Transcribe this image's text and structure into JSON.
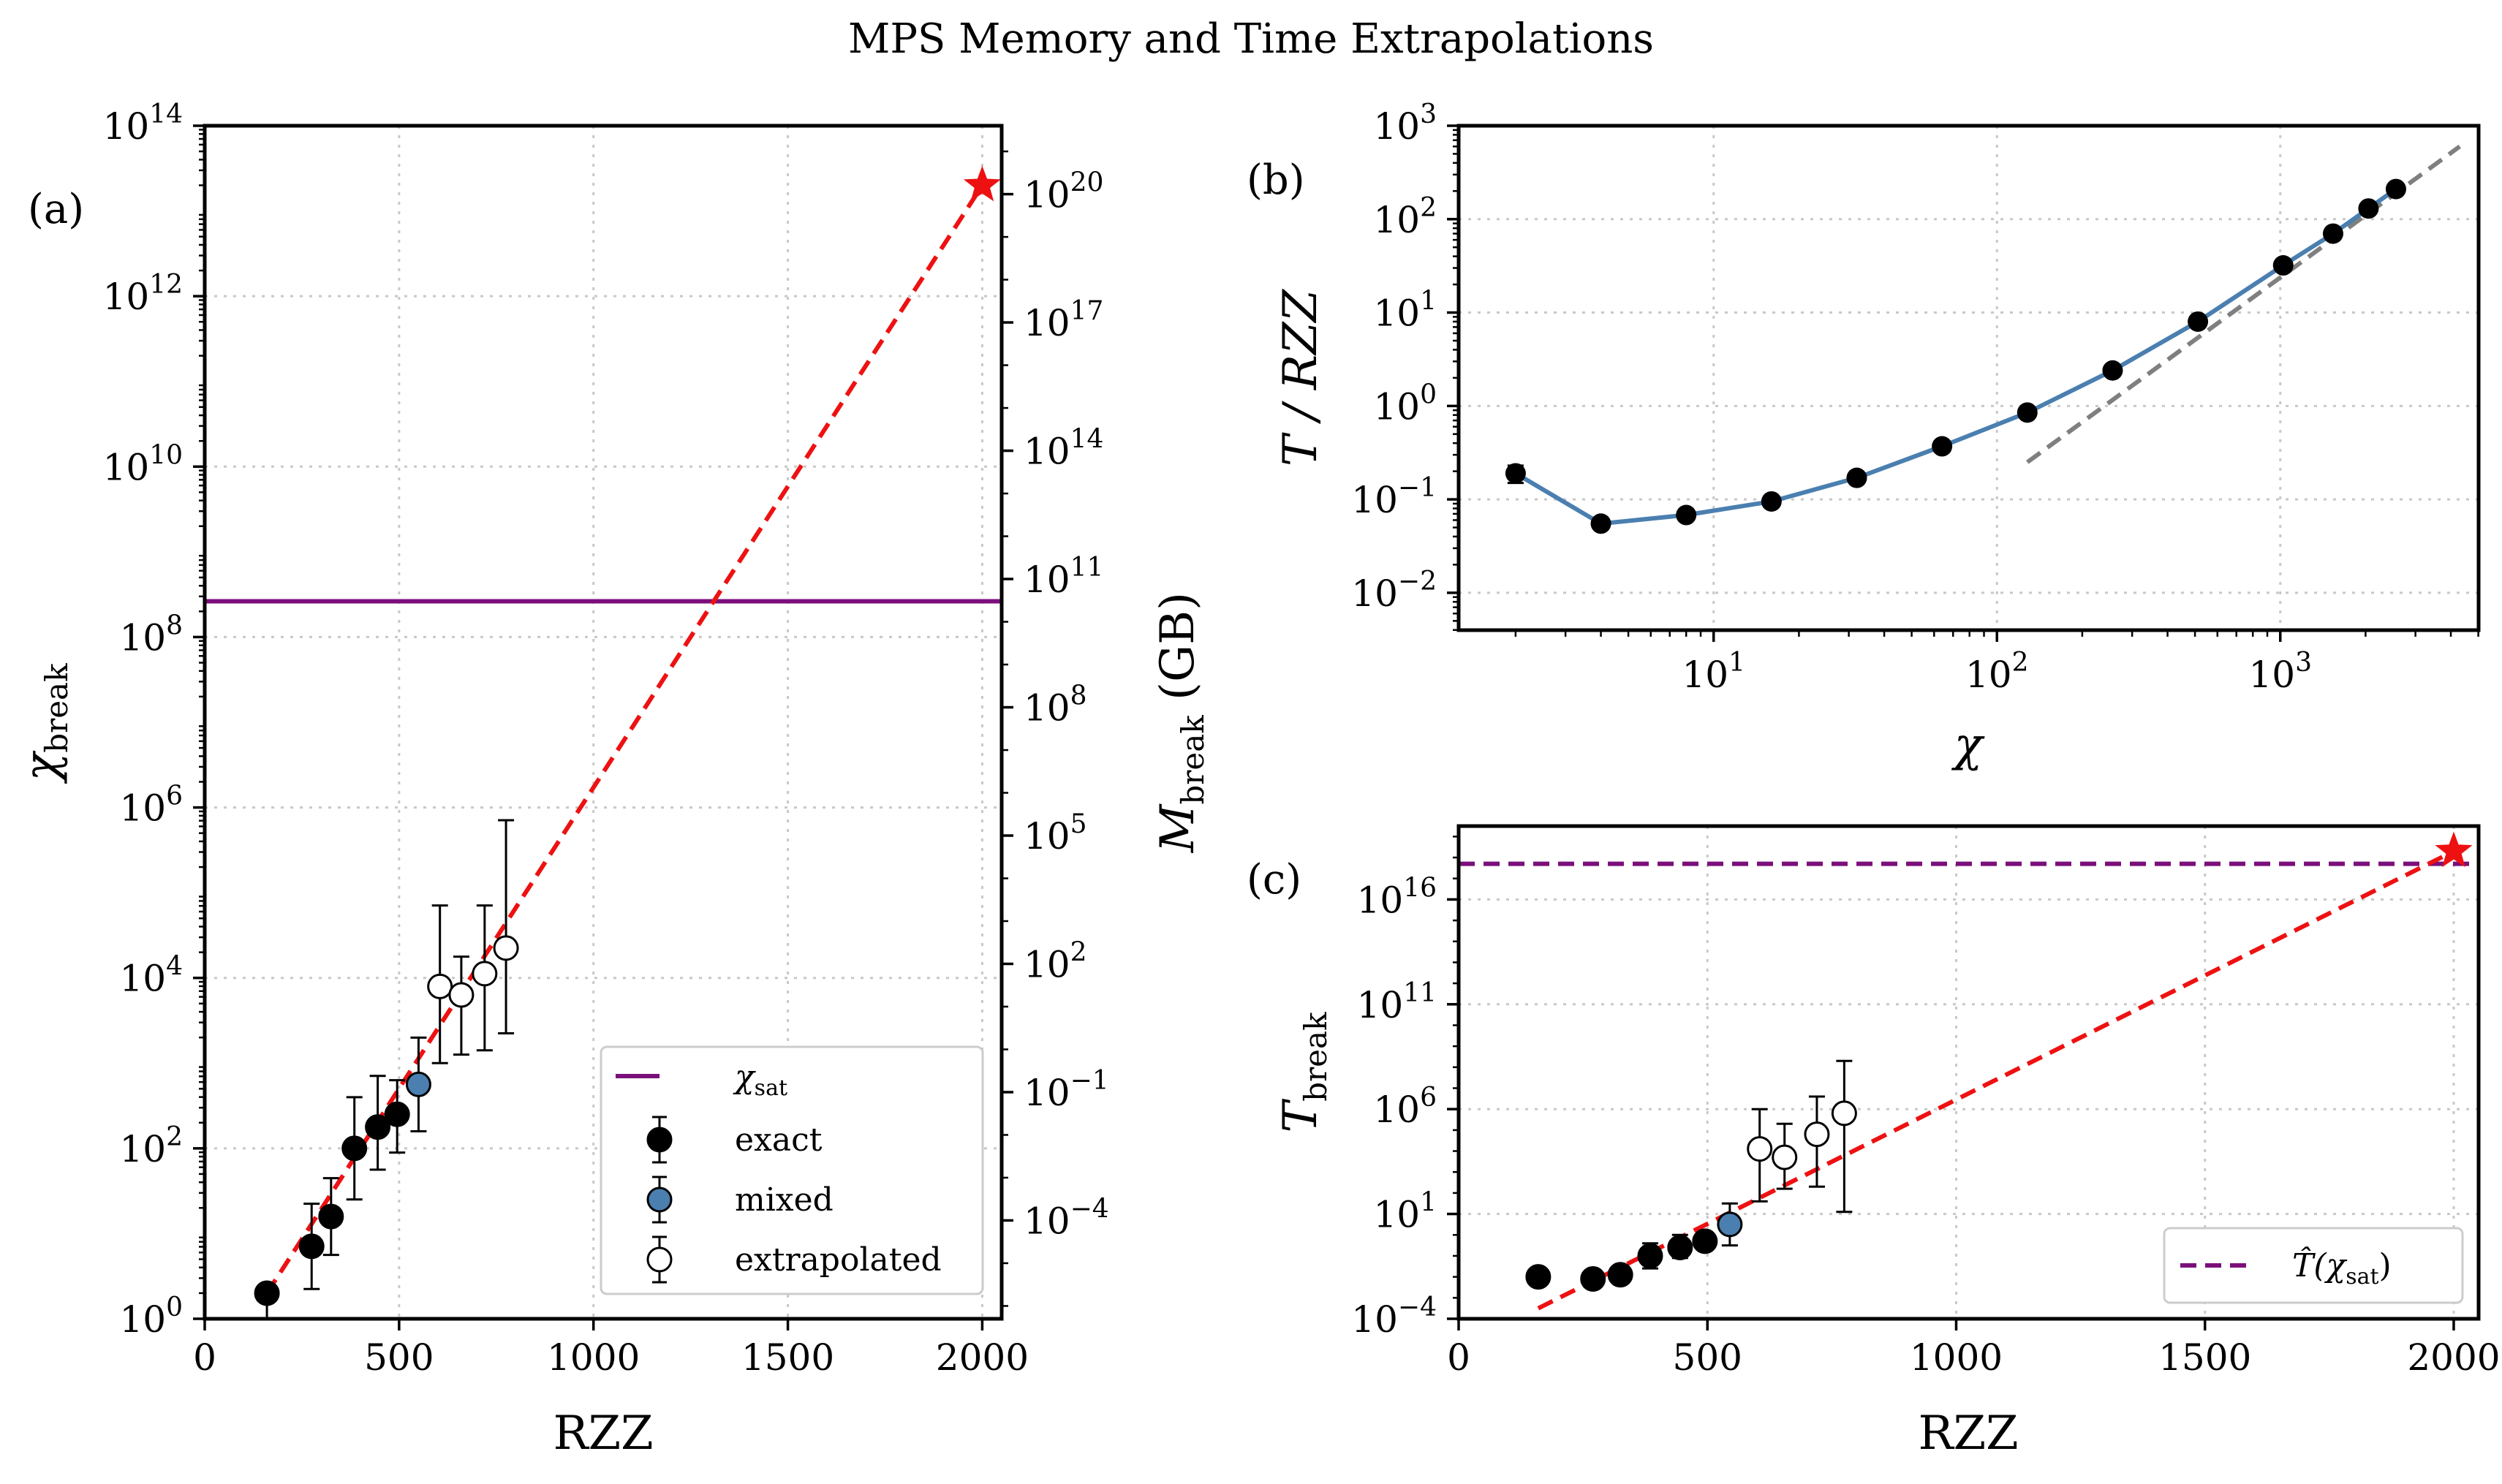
{
  "figure_title": "MPS Memory and Time Extrapolations",
  "colors": {
    "red_fit": "#ee1111",
    "purple": "#7b0f7b",
    "steelblue": "#4a7fb0",
    "gray": "#7f7f7f",
    "black": "#000000"
  },
  "chart_data": [
    {
      "id": "a",
      "panel_label": "(a)",
      "type": "scatter",
      "xlabel": "RZZ",
      "ylabel_left": "χ",
      "ylabel_left_sub": "break",
      "ylabel_right": "M",
      "ylabel_right_sub": "break",
      "ylabel_right_unit": " (GB)",
      "xlim": [
        0,
        2050
      ],
      "ylim_log10": [
        0,
        14
      ],
      "x_ticks": [
        0,
        500,
        1000,
        1500,
        2000
      ],
      "x_tick_labels": [
        "0",
        "500",
        "1000",
        "1500",
        "2000"
      ],
      "y_tick_exps": [
        0,
        2,
        4,
        6,
        8,
        10,
        12,
        14
      ],
      "y_tick_labels": [
        "10",
        "10",
        "10",
        "10",
        "10",
        "10",
        "10",
        "10"
      ],
      "y_tick_sups": [
        "0",
        "2",
        "4",
        "6",
        "8",
        "10",
        "12",
        "14"
      ],
      "right_axis_log10_range": [
        -6.3,
        21.6
      ],
      "right_tick_exps": [
        -4,
        -1,
        2,
        5,
        8,
        11,
        14,
        17,
        20
      ],
      "right_tick_labels": [
        "10",
        "10",
        "10",
        "10",
        "10",
        "10",
        "10",
        "10",
        "10"
      ],
      "right_tick_sups": [
        "−4",
        "−1",
        "2",
        "5",
        "8",
        "11",
        "14",
        "17",
        "20"
      ],
      "chi_sat_log10": 8.42,
      "fit_line": {
        "x": [
          160,
          2000
        ],
        "y_log10": [
          0.3,
          13.3
        ]
      },
      "star": {
        "x": 2000,
        "y_log10": 13.3
      },
      "series": [
        {
          "name": "exact",
          "style": "filled",
          "x": [
            160,
            275,
            325,
            385,
            445,
            495
          ],
          "y_log10": [
            0.3,
            0.85,
            1.2,
            2.0,
            2.25,
            2.4
          ],
          "err_low_log10": [
            0.3,
            0.5,
            0.45,
            0.6,
            0.5,
            0.45
          ],
          "err_high_log10": [
            0.0,
            0.5,
            0.45,
            0.6,
            0.6,
            0.4
          ]
        },
        {
          "name": "mixed",
          "style": "blue",
          "x": [
            550
          ],
          "y_log10": [
            2.75
          ],
          "err_low_log10": [
            0.55
          ],
          "err_high_log10": [
            0.55
          ]
        },
        {
          "name": "extrapolated",
          "style": "open",
          "x": [
            605,
            660,
            720,
            775
          ],
          "y_log10": [
            3.9,
            3.8,
            4.05,
            4.35
          ],
          "err_low_log10": [
            0.9,
            0.7,
            0.9,
            1.0
          ],
          "err_high_log10": [
            0.95,
            0.45,
            0.8,
            1.5
          ]
        }
      ],
      "legend": {
        "position": "lower-right",
        "line_label": "χ",
        "line_label_sub": "sat",
        "entries": [
          "exact",
          "mixed",
          "extrapolated"
        ]
      }
    },
    {
      "id": "b",
      "panel_label": "(b)",
      "type": "line",
      "xlabel": "χ",
      "ylabel": "T / RZZ",
      "xlim_log10": [
        0.1,
        3.7
      ],
      "ylim_log10": [
        -2.4,
        3.0
      ],
      "x_tick_exps": [
        1,
        2,
        3
      ],
      "x_tick_labels": [
        "10",
        "10",
        "10"
      ],
      "x_tick_sups": [
        "1",
        "2",
        "3"
      ],
      "y_tick_exps": [
        -2,
        -1,
        0,
        1,
        2,
        3
      ],
      "y_tick_labels": [
        "10",
        "10",
        "10",
        "10",
        "10",
        "10"
      ],
      "y_tick_sups": [
        "−2",
        "−1",
        "0",
        "1",
        "2",
        "3"
      ],
      "x": [
        2,
        4,
        8,
        16,
        32,
        64,
        128,
        256,
        512,
        1024,
        1536,
        2048,
        2560
      ],
      "y": [
        0.19,
        0.055,
        0.068,
        0.095,
        0.17,
        0.37,
        0.85,
        2.4,
        8.0,
        32,
        70,
        130,
        210
      ],
      "y_err": [
        0.04,
        0,
        0,
        0,
        0,
        0,
        0,
        0,
        0,
        0,
        0,
        0,
        0
      ],
      "asymptote": {
        "x": [
          128,
          4300
        ],
        "y": [
          0.25,
          600
        ]
      }
    },
    {
      "id": "c",
      "panel_label": "(c)",
      "type": "scatter",
      "xlabel": "RZZ",
      "ylabel": "T",
      "ylabel_sub": "break",
      "xlim": [
        0,
        2050
      ],
      "ylim_log10": [
        -4,
        19.5
      ],
      "x_ticks": [
        0,
        500,
        1000,
        1500,
        2000
      ],
      "x_tick_labels": [
        "0",
        "500",
        "1000",
        "1500",
        "2000"
      ],
      "y_tick_exps": [
        -4,
        1,
        6,
        11,
        16
      ],
      "y_tick_labels": [
        "10",
        "10",
        "10",
        "10",
        "10"
      ],
      "y_tick_sups": [
        "−4",
        "1",
        "6",
        "11",
        "16"
      ],
      "t_sat_log10": 17.7,
      "fit_line": {
        "x": [
          160,
          2000
        ],
        "y_log10": [
          -3.5,
          18.3
        ]
      },
      "star": {
        "x": 2000,
        "y_log10": 18.3
      },
      "series": [
        {
          "name": "exact",
          "style": "filled",
          "x": [
            160,
            270,
            325,
            385,
            445,
            495
          ],
          "y_log10": [
            -2.0,
            -2.1,
            -1.9,
            -1.0,
            -0.6,
            -0.3
          ],
          "err_low_log10": [
            0,
            0,
            0,
            0.6,
            0.5,
            0.4
          ],
          "err_high_log10": [
            0,
            0,
            0,
            0.6,
            0.6,
            0.4
          ]
        },
        {
          "name": "mixed",
          "style": "blue",
          "x": [
            545
          ],
          "y_log10": [
            0.5
          ],
          "err_low_log10": [
            1.0
          ],
          "err_high_log10": [
            1.0
          ]
        },
        {
          "name": "extrapolated",
          "style": "open",
          "x": [
            605,
            655,
            720,
            775
          ],
          "y_log10": [
            4.1,
            3.7,
            4.8,
            5.8
          ],
          "err_low_log10": [
            2.5,
            1.5,
            2.5,
            4.7
          ],
          "err_high_log10": [
            1.9,
            1.6,
            1.8,
            2.5
          ]
        }
      ],
      "legend": {
        "position": "lower-right",
        "entry": "T̂(χ",
        "entry_sub": "sat",
        "entry_close": ")"
      }
    }
  ]
}
